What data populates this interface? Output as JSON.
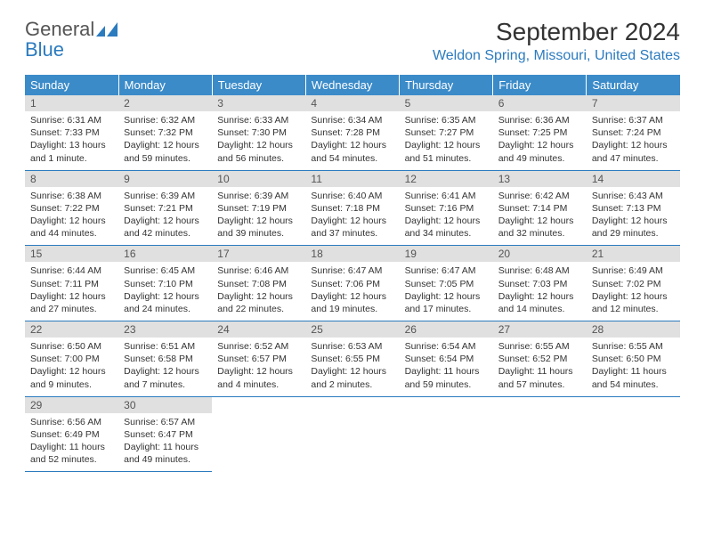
{
  "logo": {
    "part1": "General",
    "part2": "Blue"
  },
  "title": "September 2024",
  "location": "Weldon Spring, Missouri, United States",
  "colors": {
    "header_bg": "#3b8bc9",
    "accent": "#2b7bbf",
    "daynum_bg": "#e0e0e0",
    "text": "#333333"
  },
  "weekdays": [
    "Sunday",
    "Monday",
    "Tuesday",
    "Wednesday",
    "Thursday",
    "Friday",
    "Saturday"
  ],
  "weeks": [
    [
      {
        "n": "1",
        "sunrise": "Sunrise: 6:31 AM",
        "sunset": "Sunset: 7:33 PM",
        "daylight": "Daylight: 13 hours and 1 minute."
      },
      {
        "n": "2",
        "sunrise": "Sunrise: 6:32 AM",
        "sunset": "Sunset: 7:32 PM",
        "daylight": "Daylight: 12 hours and 59 minutes."
      },
      {
        "n": "3",
        "sunrise": "Sunrise: 6:33 AM",
        "sunset": "Sunset: 7:30 PM",
        "daylight": "Daylight: 12 hours and 56 minutes."
      },
      {
        "n": "4",
        "sunrise": "Sunrise: 6:34 AM",
        "sunset": "Sunset: 7:28 PM",
        "daylight": "Daylight: 12 hours and 54 minutes."
      },
      {
        "n": "5",
        "sunrise": "Sunrise: 6:35 AM",
        "sunset": "Sunset: 7:27 PM",
        "daylight": "Daylight: 12 hours and 51 minutes."
      },
      {
        "n": "6",
        "sunrise": "Sunrise: 6:36 AM",
        "sunset": "Sunset: 7:25 PM",
        "daylight": "Daylight: 12 hours and 49 minutes."
      },
      {
        "n": "7",
        "sunrise": "Sunrise: 6:37 AM",
        "sunset": "Sunset: 7:24 PM",
        "daylight": "Daylight: 12 hours and 47 minutes."
      }
    ],
    [
      {
        "n": "8",
        "sunrise": "Sunrise: 6:38 AM",
        "sunset": "Sunset: 7:22 PM",
        "daylight": "Daylight: 12 hours and 44 minutes."
      },
      {
        "n": "9",
        "sunrise": "Sunrise: 6:39 AM",
        "sunset": "Sunset: 7:21 PM",
        "daylight": "Daylight: 12 hours and 42 minutes."
      },
      {
        "n": "10",
        "sunrise": "Sunrise: 6:39 AM",
        "sunset": "Sunset: 7:19 PM",
        "daylight": "Daylight: 12 hours and 39 minutes."
      },
      {
        "n": "11",
        "sunrise": "Sunrise: 6:40 AM",
        "sunset": "Sunset: 7:18 PM",
        "daylight": "Daylight: 12 hours and 37 minutes."
      },
      {
        "n": "12",
        "sunrise": "Sunrise: 6:41 AM",
        "sunset": "Sunset: 7:16 PM",
        "daylight": "Daylight: 12 hours and 34 minutes."
      },
      {
        "n": "13",
        "sunrise": "Sunrise: 6:42 AM",
        "sunset": "Sunset: 7:14 PM",
        "daylight": "Daylight: 12 hours and 32 minutes."
      },
      {
        "n": "14",
        "sunrise": "Sunrise: 6:43 AM",
        "sunset": "Sunset: 7:13 PM",
        "daylight": "Daylight: 12 hours and 29 minutes."
      }
    ],
    [
      {
        "n": "15",
        "sunrise": "Sunrise: 6:44 AM",
        "sunset": "Sunset: 7:11 PM",
        "daylight": "Daylight: 12 hours and 27 minutes."
      },
      {
        "n": "16",
        "sunrise": "Sunrise: 6:45 AM",
        "sunset": "Sunset: 7:10 PM",
        "daylight": "Daylight: 12 hours and 24 minutes."
      },
      {
        "n": "17",
        "sunrise": "Sunrise: 6:46 AM",
        "sunset": "Sunset: 7:08 PM",
        "daylight": "Daylight: 12 hours and 22 minutes."
      },
      {
        "n": "18",
        "sunrise": "Sunrise: 6:47 AM",
        "sunset": "Sunset: 7:06 PM",
        "daylight": "Daylight: 12 hours and 19 minutes."
      },
      {
        "n": "19",
        "sunrise": "Sunrise: 6:47 AM",
        "sunset": "Sunset: 7:05 PM",
        "daylight": "Daylight: 12 hours and 17 minutes."
      },
      {
        "n": "20",
        "sunrise": "Sunrise: 6:48 AM",
        "sunset": "Sunset: 7:03 PM",
        "daylight": "Daylight: 12 hours and 14 minutes."
      },
      {
        "n": "21",
        "sunrise": "Sunrise: 6:49 AM",
        "sunset": "Sunset: 7:02 PM",
        "daylight": "Daylight: 12 hours and 12 minutes."
      }
    ],
    [
      {
        "n": "22",
        "sunrise": "Sunrise: 6:50 AM",
        "sunset": "Sunset: 7:00 PM",
        "daylight": "Daylight: 12 hours and 9 minutes."
      },
      {
        "n": "23",
        "sunrise": "Sunrise: 6:51 AM",
        "sunset": "Sunset: 6:58 PM",
        "daylight": "Daylight: 12 hours and 7 minutes."
      },
      {
        "n": "24",
        "sunrise": "Sunrise: 6:52 AM",
        "sunset": "Sunset: 6:57 PM",
        "daylight": "Daylight: 12 hours and 4 minutes."
      },
      {
        "n": "25",
        "sunrise": "Sunrise: 6:53 AM",
        "sunset": "Sunset: 6:55 PM",
        "daylight": "Daylight: 12 hours and 2 minutes."
      },
      {
        "n": "26",
        "sunrise": "Sunrise: 6:54 AM",
        "sunset": "Sunset: 6:54 PM",
        "daylight": "Daylight: 11 hours and 59 minutes."
      },
      {
        "n": "27",
        "sunrise": "Sunrise: 6:55 AM",
        "sunset": "Sunset: 6:52 PM",
        "daylight": "Daylight: 11 hours and 57 minutes."
      },
      {
        "n": "28",
        "sunrise": "Sunrise: 6:55 AM",
        "sunset": "Sunset: 6:50 PM",
        "daylight": "Daylight: 11 hours and 54 minutes."
      }
    ],
    [
      {
        "n": "29",
        "sunrise": "Sunrise: 6:56 AM",
        "sunset": "Sunset: 6:49 PM",
        "daylight": "Daylight: 11 hours and 52 minutes."
      },
      {
        "n": "30",
        "sunrise": "Sunrise: 6:57 AM",
        "sunset": "Sunset: 6:47 PM",
        "daylight": "Daylight: 11 hours and 49 minutes."
      },
      null,
      null,
      null,
      null,
      null
    ]
  ]
}
